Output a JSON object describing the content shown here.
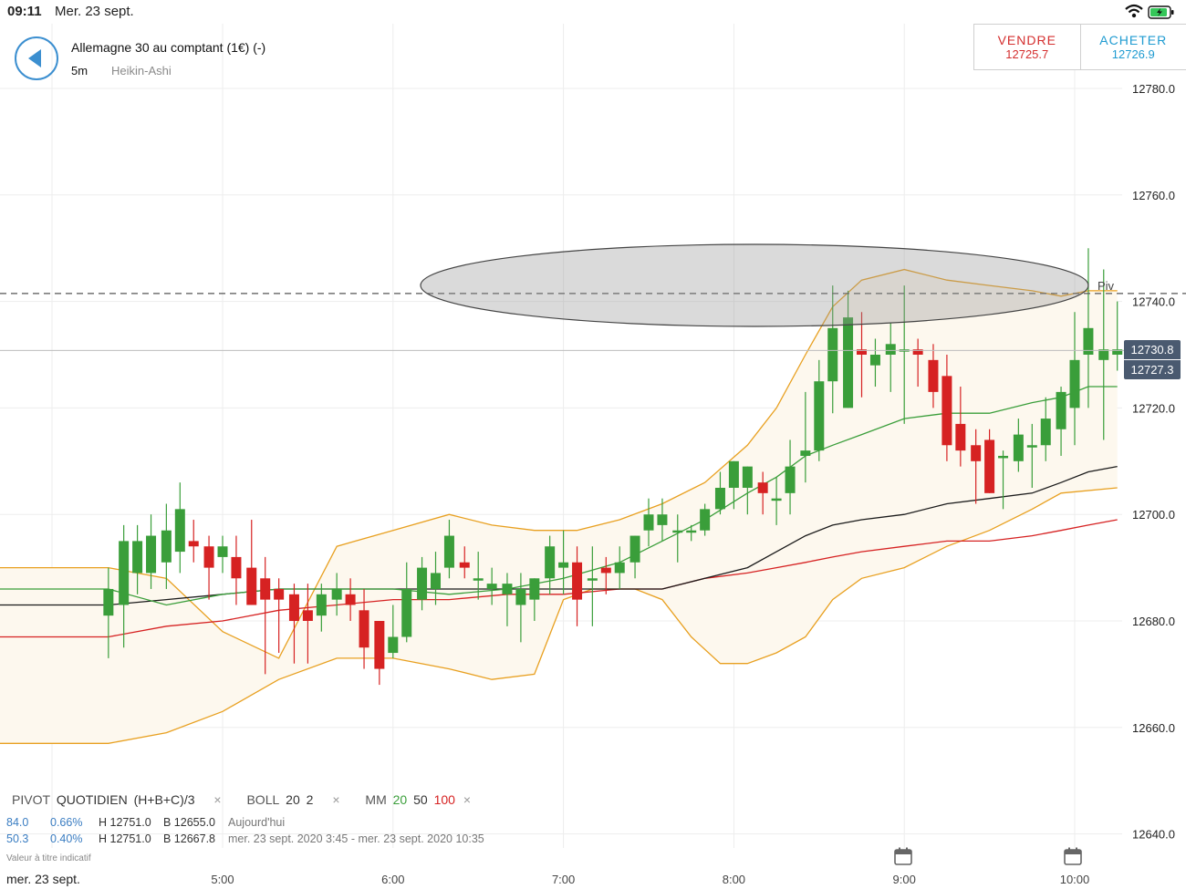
{
  "status_bar": {
    "time": "09:11",
    "date": "Mer. 23 sept.",
    "wifi_icon": "wifi-icon",
    "battery_icon": "battery-charging-icon"
  },
  "header": {
    "back_icon": "back-arrow-icon",
    "instrument": "Allemagne 30 au comptant (1€) (-)",
    "interval": "5m",
    "chart_type": "Heikin-Ashi",
    "sell_label": "VENDRE",
    "sell_price": "12725.7",
    "buy_label": "ACHETER",
    "buy_price": "12726.9",
    "sell_color": "#d42e2e",
    "buy_color": "#1f9bd1"
  },
  "indicators": {
    "pivot_label": "PIVOT",
    "pivot_period": "QUOTIDIEN",
    "pivot_formula": "(H+B+C)/3",
    "boll_label": "BOLL",
    "boll_period": "20",
    "boll_dev": "2",
    "mm_label": "MM",
    "mm_20": "20",
    "mm_50": "50",
    "mm_100": "100",
    "close_glyph": "×"
  },
  "stats": [
    {
      "val": "84.0",
      "pct": "0.66%",
      "high": "H 12751.0",
      "low": "B 12655.0",
      "range": "Aujourd'hui"
    },
    {
      "val": "50.3",
      "pct": "0.40%",
      "high": "H 12751.0",
      "low": "B 12667.8",
      "range": "mer. 23 sept. 2020 3:45 - mer. 23 sept. 2020 10:35"
    }
  ],
  "disclaimer": "Valeur à titre indicatif",
  "date_label": "mer. 23 sept.",
  "price_tags": {
    "sell": "12730.8",
    "buy": "12727.3"
  },
  "chart_data": {
    "type": "candlestick",
    "y_ticks": [
      "12780.0",
      "12760.0",
      "12740.0",
      "12720.0",
      "12700.0",
      "12680.0",
      "12660.0",
      "12640.0"
    ],
    "y_tick_values": [
      12780,
      12760,
      12740,
      12720,
      12700,
      12680,
      12660,
      12640
    ],
    "x_ticks": [
      "5:00",
      "6:00",
      "7:00",
      "8:00",
      "9:00",
      "10:00"
    ],
    "x_tick_hours": [
      5,
      6,
      7,
      8,
      9,
      10
    ],
    "pivot_label": "Piv",
    "pivot_value": 12741.5,
    "current_price": 12730.8,
    "colors": {
      "up": "#3a9e3a",
      "down": "#d62222",
      "boll": "#e8a020",
      "mm20": "#3a9e3a",
      "mm50": "#1a1a1a",
      "mm100": "#d62222",
      "band_fill": "#fdf8ee"
    },
    "candles": [
      {
        "t": 4.33,
        "o": 12681,
        "h": 12690,
        "l": 12673,
        "c": 12686
      },
      {
        "t": 4.42,
        "o": 12683,
        "h": 12698,
        "l": 12675,
        "c": 12695
      },
      {
        "t": 4.5,
        "o": 12689,
        "h": 12698,
        "l": 12685,
        "c": 12695
      },
      {
        "t": 4.58,
        "o": 12689,
        "h": 12700,
        "l": 12686,
        "c": 12696
      },
      {
        "t": 4.67,
        "o": 12691,
        "h": 12702,
        "l": 12686,
        "c": 12697
      },
      {
        "t": 4.75,
        "o": 12693,
        "h": 12706,
        "l": 12689,
        "c": 12701
      },
      {
        "t": 4.83,
        "o": 12695,
        "h": 12699,
        "l": 12691,
        "c": 12694
      },
      {
        "t": 4.92,
        "o": 12694,
        "h": 12696,
        "l": 12684,
        "c": 12690
      },
      {
        "t": 5.0,
        "o": 12692,
        "h": 12696,
        "l": 12689,
        "c": 12694
      },
      {
        "t": 5.08,
        "o": 12692,
        "h": 12696,
        "l": 12683,
        "c": 12688
      },
      {
        "t": 5.17,
        "o": 12690,
        "h": 12699,
        "l": 12683,
        "c": 12683
      },
      {
        "t": 5.25,
        "o": 12688,
        "h": 12692,
        "l": 12670,
        "c": 12684
      },
      {
        "t": 5.33,
        "o": 12686,
        "h": 12688,
        "l": 12674,
        "c": 12684
      },
      {
        "t": 5.42,
        "o": 12685,
        "h": 12687,
        "l": 12672,
        "c": 12680
      },
      {
        "t": 5.5,
        "o": 12682,
        "h": 12687,
        "l": 12672,
        "c": 12680
      },
      {
        "t": 5.58,
        "o": 12681,
        "h": 12687,
        "l": 12678,
        "c": 12685
      },
      {
        "t": 5.67,
        "o": 12684,
        "h": 12689,
        "l": 12681,
        "c": 12686
      },
      {
        "t": 5.75,
        "o": 12685,
        "h": 12688,
        "l": 12680,
        "c": 12683
      },
      {
        "t": 5.83,
        "o": 12682,
        "h": 12686,
        "l": 12671,
        "c": 12675
      },
      {
        "t": 5.92,
        "o": 12680,
        "h": 12680,
        "l": 12668,
        "c": 12671
      },
      {
        "t": 6.0,
        "o": 12674,
        "h": 12683,
        "l": 12673,
        "c": 12677
      },
      {
        "t": 6.08,
        "o": 12677,
        "h": 12691,
        "l": 12676,
        "c": 12686
      },
      {
        "t": 6.17,
        "o": 12684,
        "h": 12692,
        "l": 12682,
        "c": 12690
      },
      {
        "t": 6.25,
        "o": 12686,
        "h": 12693,
        "l": 12683,
        "c": 12689
      },
      {
        "t": 6.33,
        "o": 12690,
        "h": 12699,
        "l": 12688,
        "c": 12696
      },
      {
        "t": 6.42,
        "o": 12691,
        "h": 12694,
        "l": 12688,
        "c": 12690
      },
      {
        "t": 6.5,
        "o": 12688,
        "h": 12693,
        "l": 12684,
        "c": 12688
      },
      {
        "t": 6.58,
        "o": 12686,
        "h": 12690,
        "l": 12683,
        "c": 12687
      },
      {
        "t": 6.67,
        "o": 12685,
        "h": 12689,
        "l": 12679,
        "c": 12687
      },
      {
        "t": 6.75,
        "o": 12683,
        "h": 12689,
        "l": 12676,
        "c": 12686
      },
      {
        "t": 6.83,
        "o": 12684,
        "h": 12688,
        "l": 12680,
        "c": 12688
      },
      {
        "t": 6.92,
        "o": 12688,
        "h": 12696,
        "l": 12685,
        "c": 12694
      },
      {
        "t": 7.0,
        "o": 12690,
        "h": 12697,
        "l": 12685,
        "c": 12691
      },
      {
        "t": 7.08,
        "o": 12691,
        "h": 12694,
        "l": 12679,
        "c": 12684
      },
      {
        "t": 7.17,
        "o": 12688,
        "h": 12694,
        "l": 12679,
        "c": 12688
      },
      {
        "t": 7.25,
        "o": 12690,
        "h": 12692,
        "l": 12685,
        "c": 12689
      },
      {
        "t": 7.33,
        "o": 12689,
        "h": 12694,
        "l": 12686,
        "c": 12691
      },
      {
        "t": 7.42,
        "o": 12691,
        "h": 12696,
        "l": 12688,
        "c": 12696
      },
      {
        "t": 7.5,
        "o": 12697,
        "h": 12703,
        "l": 12694,
        "c": 12700
      },
      {
        "t": 7.58,
        "o": 12698,
        "h": 12703,
        "l": 12695,
        "c": 12700
      },
      {
        "t": 7.67,
        "o": 12697,
        "h": 12700,
        "l": 12691,
        "c": 12697
      },
      {
        "t": 7.75,
        "o": 12697,
        "h": 12698,
        "l": 12695,
        "c": 12697
      },
      {
        "t": 7.83,
        "o": 12697,
        "h": 12702,
        "l": 12696,
        "c": 12701
      },
      {
        "t": 7.92,
        "o": 12701,
        "h": 12708,
        "l": 12700,
        "c": 12705
      },
      {
        "t": 8.0,
        "o": 12705,
        "h": 12710,
        "l": 12701,
        "c": 12710
      },
      {
        "t": 8.08,
        "o": 12705,
        "h": 12709,
        "l": 12700,
        "c": 12709
      },
      {
        "t": 8.17,
        "o": 12706,
        "h": 12708,
        "l": 12700,
        "c": 12704
      },
      {
        "t": 8.25,
        "o": 12703,
        "h": 12707,
        "l": 12698,
        "c": 12703
      },
      {
        "t": 8.33,
        "o": 12704,
        "h": 12714,
        "l": 12700,
        "c": 12709
      },
      {
        "t": 8.42,
        "o": 12711,
        "h": 12723,
        "l": 12706,
        "c": 12712
      },
      {
        "t": 8.5,
        "o": 12712,
        "h": 12729,
        "l": 12710,
        "c": 12725
      },
      {
        "t": 8.58,
        "o": 12725,
        "h": 12743,
        "l": 12719,
        "c": 12735
      },
      {
        "t": 8.67,
        "o": 12720,
        "h": 12742,
        "l": 12720,
        "c": 12737
      },
      {
        "t": 8.75,
        "o": 12731,
        "h": 12738,
        "l": 12722,
        "c": 12730
      },
      {
        "t": 8.83,
        "o": 12728,
        "h": 12733,
        "l": 12724,
        "c": 12730
      },
      {
        "t": 8.92,
        "o": 12730,
        "h": 12736,
        "l": 12723,
        "c": 12732
      },
      {
        "t": 9.0,
        "o": 12731,
        "h": 12743,
        "l": 12717,
        "c": 12731
      },
      {
        "t": 9.08,
        "o": 12731,
        "h": 12733,
        "l": 12724,
        "c": 12730
      },
      {
        "t": 9.17,
        "o": 12729,
        "h": 12732,
        "l": 12720,
        "c": 12723
      },
      {
        "t": 9.25,
        "o": 12726,
        "h": 12730,
        "l": 12710,
        "c": 12713
      },
      {
        "t": 9.33,
        "o": 12717,
        "h": 12724,
        "l": 12709,
        "c": 12712
      },
      {
        "t": 9.42,
        "o": 12713,
        "h": 12716,
        "l": 12702,
        "c": 12710
      },
      {
        "t": 9.5,
        "o": 12714,
        "h": 12716,
        "l": 12704,
        "c": 12704
      },
      {
        "t": 9.58,
        "o": 12711,
        "h": 12712,
        "l": 12701,
        "c": 12711
      },
      {
        "t": 9.67,
        "o": 12710,
        "h": 12718,
        "l": 12708,
        "c": 12715
      },
      {
        "t": 9.75,
        "o": 12713,
        "h": 12717,
        "l": 12705,
        "c": 12713
      },
      {
        "t": 9.83,
        "o": 12713,
        "h": 12722,
        "l": 12710,
        "c": 12718
      },
      {
        "t": 9.92,
        "o": 12716,
        "h": 12724,
        "l": 12711,
        "c": 12723
      },
      {
        "t": 10.0,
        "o": 12720,
        "h": 12738,
        "l": 12713,
        "c": 12729
      },
      {
        "t": 10.08,
        "o": 12730,
        "h": 12750,
        "l": 12720,
        "c": 12735
      },
      {
        "t": 10.17,
        "o": 12729,
        "h": 12746,
        "l": 12714,
        "c": 12731
      },
      {
        "t": 10.25,
        "o": 12730,
        "h": 12740,
        "l": 12727,
        "c": 12731
      }
    ],
    "boll_upper": [
      [
        4.33,
        12690
      ],
      [
        4.67,
        12688
      ],
      [
        5.0,
        12678
      ],
      [
        5.33,
        12673
      ],
      [
        5.67,
        12694
      ],
      [
        6.0,
        12697
      ],
      [
        6.33,
        12700
      ],
      [
        6.58,
        12698
      ],
      [
        6.83,
        12697
      ],
      [
        7.08,
        12697
      ],
      [
        7.33,
        12699
      ],
      [
        7.58,
        12702
      ],
      [
        7.83,
        12706
      ],
      [
        8.08,
        12713
      ],
      [
        8.25,
        12720
      ],
      [
        8.42,
        12730
      ],
      [
        8.58,
        12739
      ],
      [
        8.75,
        12744
      ],
      [
        9.0,
        12746
      ],
      [
        9.25,
        12744
      ],
      [
        9.5,
        12743
      ],
      [
        9.75,
        12742
      ],
      [
        9.92,
        12741
      ],
      [
        10.08,
        12742
      ],
      [
        10.25,
        12742
      ]
    ],
    "boll_lower": [
      [
        4.33,
        12657
      ],
      [
        4.67,
        12659
      ],
      [
        5.0,
        12663
      ],
      [
        5.33,
        12669
      ],
      [
        5.67,
        12673
      ],
      [
        6.0,
        12673
      ],
      [
        6.33,
        12671
      ],
      [
        6.58,
        12669
      ],
      [
        6.83,
        12670
      ],
      [
        7.0,
        12684
      ],
      [
        7.17,
        12686
      ],
      [
        7.42,
        12686
      ],
      [
        7.58,
        12684
      ],
      [
        7.75,
        12677
      ],
      [
        7.92,
        12672
      ],
      [
        8.08,
        12672
      ],
      [
        8.25,
        12674
      ],
      [
        8.42,
        12677
      ],
      [
        8.58,
        12684
      ],
      [
        8.75,
        12688
      ],
      [
        9.0,
        12690
      ],
      [
        9.25,
        12694
      ],
      [
        9.5,
        12697
      ],
      [
        9.75,
        12701
      ],
      [
        9.92,
        12704
      ],
      [
        10.25,
        12705
      ]
    ],
    "mm20": [
      [
        4.33,
        12686
      ],
      [
        4.67,
        12683
      ],
      [
        5.0,
        12685
      ],
      [
        5.33,
        12686
      ],
      [
        5.67,
        12686
      ],
      [
        6.0,
        12686
      ],
      [
        6.33,
        12685
      ],
      [
        6.67,
        12686
      ],
      [
        7.0,
        12688
      ],
      [
        7.33,
        12691
      ],
      [
        7.58,
        12695
      ],
      [
        7.83,
        12699
      ],
      [
        8.08,
        12704
      ],
      [
        8.25,
        12707
      ],
      [
        8.42,
        12711
      ],
      [
        8.58,
        12713
      ],
      [
        8.75,
        12715
      ],
      [
        9.0,
        12718
      ],
      [
        9.25,
        12719
      ],
      [
        9.5,
        12719
      ],
      [
        9.75,
        12721
      ],
      [
        9.92,
        12722
      ],
      [
        10.08,
        12724
      ],
      [
        10.25,
        12724
      ]
    ],
    "mm50": [
      [
        4.33,
        12683
      ],
      [
        4.67,
        12684
      ],
      [
        5.0,
        12685
      ],
      [
        5.33,
        12686
      ],
      [
        5.67,
        12686
      ],
      [
        6.0,
        12686
      ],
      [
        6.33,
        12686
      ],
      [
        6.67,
        12686
      ],
      [
        7.0,
        12686
      ],
      [
        7.33,
        12686
      ],
      [
        7.58,
        12686
      ],
      [
        7.83,
        12688
      ],
      [
        8.08,
        12690
      ],
      [
        8.25,
        12693
      ],
      [
        8.42,
        12696
      ],
      [
        8.58,
        12698
      ],
      [
        8.75,
        12699
      ],
      [
        9.0,
        12700
      ],
      [
        9.25,
        12702
      ],
      [
        9.5,
        12703
      ],
      [
        9.75,
        12704
      ],
      [
        9.92,
        12706
      ],
      [
        10.08,
        12708
      ],
      [
        10.25,
        12709
      ]
    ],
    "mm100": [
      [
        4.33,
        12677
      ],
      [
        4.67,
        12679
      ],
      [
        5.0,
        12680
      ],
      [
        5.33,
        12682
      ],
      [
        5.67,
        12683
      ],
      [
        6.0,
        12684
      ],
      [
        6.33,
        12684
      ],
      [
        6.67,
        12685
      ],
      [
        7.0,
        12685
      ],
      [
        7.33,
        12686
      ],
      [
        7.58,
        12686
      ],
      [
        7.83,
        12688
      ],
      [
        8.08,
        12689
      ],
      [
        8.25,
        12690
      ],
      [
        8.42,
        12691
      ],
      [
        8.58,
        12692
      ],
      [
        8.75,
        12693
      ],
      [
        9.0,
        12694
      ],
      [
        9.25,
        12695
      ],
      [
        9.5,
        12695
      ],
      [
        9.75,
        12696
      ],
      [
        9.92,
        12697
      ],
      [
        10.08,
        12698
      ],
      [
        10.25,
        12699
      ]
    ]
  }
}
